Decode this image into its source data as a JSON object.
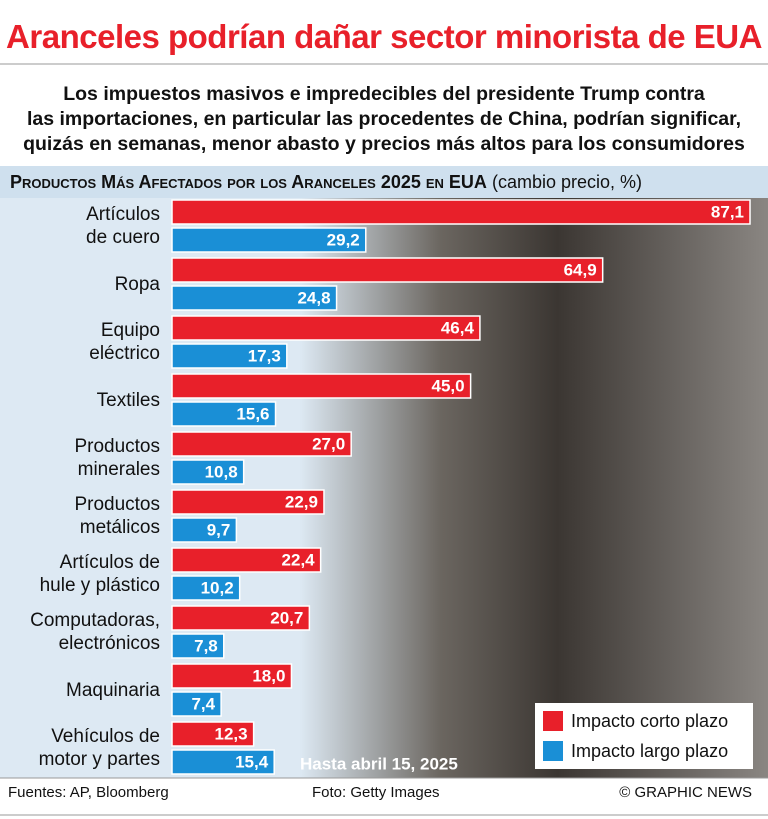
{
  "chart_data": {
    "type": "bar",
    "title": "Aranceles podrían dañar sector minorista de EUA",
    "subtitle": "Los impuestos masivos e impredecibles del presidente Trump contra\nlas importaciones, en particular las procedentes de China, podrían significar,\nquizás en semanas, menor abasto y precios más altos para los consumidores",
    "chart_title": "Productos Más Afectados por los Aranceles 2025 en EUA",
    "unit_label": "(cambio precio, %)",
    "categories": [
      "Artículos\nde cuero",
      "Ropa",
      "Equipo\neléctrico",
      "Textiles",
      "Productos\nminerales",
      "Productos\nmetálicos",
      "Artículos de\nhule y plástico",
      "Computadoras,\nelectrónicos",
      "Maquinaria",
      "Vehículos de\nmotor y  partes"
    ],
    "series": [
      {
        "name": "Impacto corto plazo",
        "color": "#e8202a",
        "values": [
          87.1,
          64.9,
          46.4,
          45.0,
          27.0,
          22.9,
          22.4,
          20.7,
          18.0,
          12.3
        ],
        "value_labels": [
          "87,1",
          "64,9",
          "46,4",
          "45,0",
          "27,0",
          "22,9",
          "22,4",
          "20,7",
          "18,0",
          "12,3"
        ]
      },
      {
        "name": "Impacto largo plazo",
        "color": "#1a8fd6",
        "values": [
          29.2,
          24.8,
          17.3,
          15.6,
          10.8,
          9.7,
          10.2,
          7.8,
          7.4,
          15.4
        ],
        "value_labels": [
          "29,2",
          "24,8",
          "17,3",
          "15,6",
          "10,8",
          "9,7",
          "10,2",
          "7,8",
          "7,4",
          "15,4"
        ]
      }
    ],
    "note": "Hasta abril 15, 2025",
    "legend": "bottom-right",
    "sources": "Fuentes: AP, Bloomberg",
    "photo_credit": "Foto: Getty Images",
    "credit": "© GRAPHIC NEWS"
  }
}
